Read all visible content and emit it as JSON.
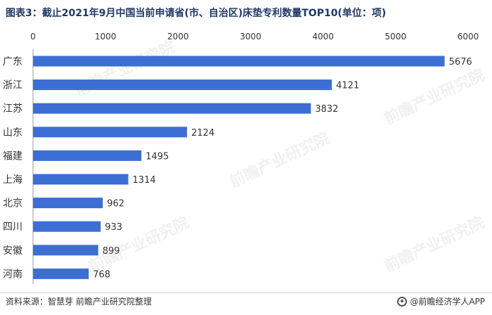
{
  "title": "图表3：截止2021年9月中国当前申请省(市、自治区)床垫专利数量TOP10(单位：项)",
  "source": "资料来源：智慧芽 前瞻产业研究院整理",
  "brand": "@前瞻经济学人APP",
  "watermark": "前瞻产业研究院",
  "colors": {
    "bar": "#3d6fd3",
    "title": "#1f3864",
    "axis": "#333333"
  },
  "chart_data": {
    "type": "bar",
    "orientation": "horizontal",
    "categories": [
      "广东",
      "浙江",
      "江苏",
      "山东",
      "福建",
      "上海",
      "北京",
      "四川",
      "安徽",
      "河南"
    ],
    "values": [
      5676,
      4121,
      3832,
      2124,
      1495,
      1314,
      962,
      933,
      899,
      768
    ],
    "xlim": [
      0,
      6000
    ],
    "xticks": [
      0,
      1000,
      2000,
      3000,
      4000,
      5000,
      6000
    ],
    "xaxis_position": "top",
    "grid": false,
    "legend": "none"
  }
}
